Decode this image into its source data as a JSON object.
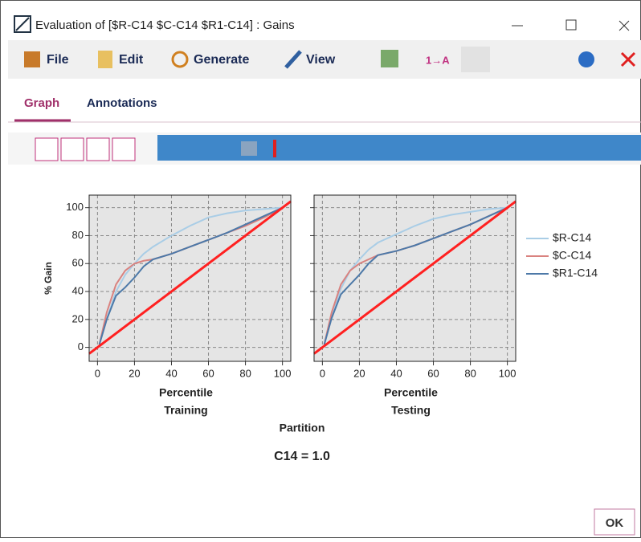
{
  "window": {
    "title": "Evaluation of [$R-C14 $C-C14 $R1-C14] : Gains"
  },
  "menu": {
    "items": [
      "File",
      "Edit",
      "Generate",
      "View"
    ]
  },
  "tabs": {
    "items": [
      "Graph",
      "Annotations"
    ]
  },
  "chart_data": [
    {
      "type": "line",
      "y_label": "% Gain",
      "x_label": "Percentile",
      "panel_label": "Training",
      "xlim": [
        -4.5,
        104.5
      ],
      "ylim": [
        -10,
        109
      ],
      "xticks": [
        0,
        20,
        40,
        60,
        80,
        100
      ],
      "yticks": [
        0,
        20,
        40,
        60,
        80,
        100
      ],
      "grid": true,
      "legend": "right",
      "x": [
        1,
        5,
        10,
        15,
        20,
        25,
        30,
        40,
        50,
        60,
        70,
        80,
        90,
        100
      ],
      "series": [
        {
          "name": "$R-C14",
          "color": "#a9cde6",
          "values": [
            2,
            20,
            40,
            52,
            60,
            67,
            72,
            80,
            87,
            93,
            96,
            98,
            99,
            100
          ]
        },
        {
          "name": "$C-C14",
          "color": "#d9827f",
          "values": [
            2,
            25,
            45,
            55,
            60,
            62,
            63,
            67,
            72,
            77,
            82,
            87,
            93,
            100
          ]
        },
        {
          "name": "$R1-C14",
          "color": "#4d79a8",
          "values": [
            2,
            20,
            37,
            43,
            50,
            58,
            63,
            67,
            72,
            77,
            82,
            88,
            94,
            100
          ]
        }
      ],
      "baseline": {
        "color": "#ff2020",
        "x": [
          -4.5,
          104.5
        ],
        "values": [
          -4.5,
          104.5
        ]
      }
    },
    {
      "type": "line",
      "x_label": "Percentile",
      "panel_label": "Testing",
      "xlim": [
        -4.5,
        104.5
      ],
      "ylim": [
        -10,
        109
      ],
      "xticks": [
        0,
        20,
        40,
        60,
        80,
        100
      ],
      "yticks": [
        0,
        20,
        40,
        60,
        80,
        100
      ],
      "grid": true,
      "x": [
        1,
        5,
        10,
        15,
        20,
        25,
        30,
        40,
        50,
        60,
        70,
        80,
        90,
        100
      ],
      "series": [
        {
          "name": "$R-C14",
          "color": "#a9cde6",
          "values": [
            2,
            22,
            42,
            55,
            63,
            70,
            75,
            81,
            87,
            92,
            95,
            97,
            99,
            100
          ]
        },
        {
          "name": "$C-C14",
          "color": "#d9827f",
          "values": [
            2,
            25,
            45,
            55,
            60,
            63,
            66,
            69,
            73,
            78,
            83,
            88,
            94,
            100
          ]
        },
        {
          "name": "$R1-C14",
          "color": "#4d79a8",
          "values": [
            2,
            21,
            38,
            45,
            52,
            60,
            66,
            69,
            73,
            78,
            83,
            88,
            94,
            100
          ]
        }
      ],
      "baseline": {
        "color": "#ff2020",
        "x": [
          -4.5,
          104.5
        ],
        "values": [
          -4.5,
          104.5
        ]
      }
    }
  ],
  "footer": {
    "partition_label": "Partition",
    "caption": "C14 = 1.0",
    "ok_button": "OK"
  }
}
